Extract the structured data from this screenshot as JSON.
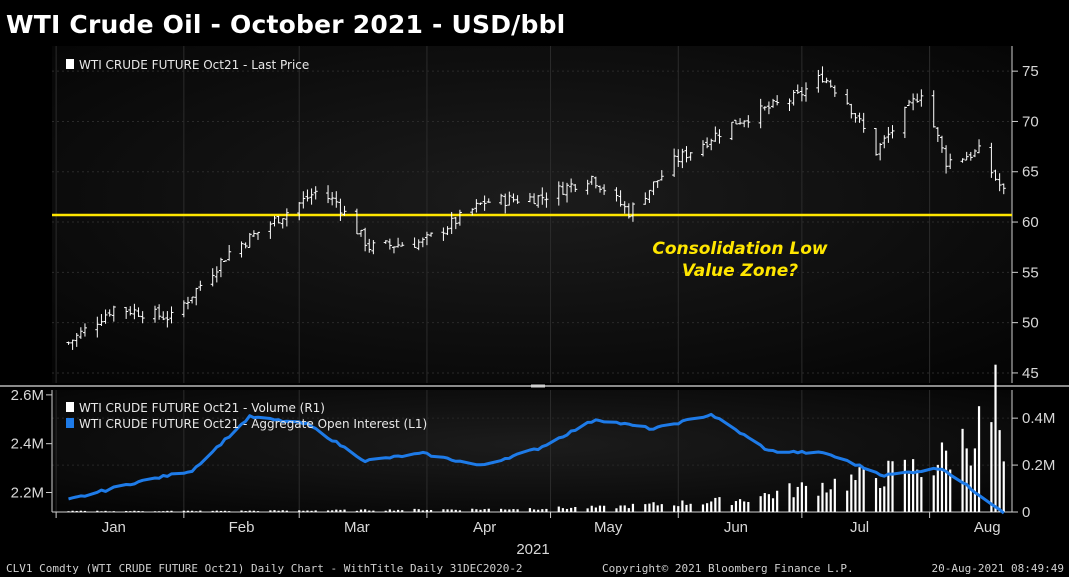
{
  "title": "WTI Crude Oil - October 2021 - USD/bbl",
  "footer": {
    "left": "CLV1 Comdty (WTI CRUDE FUTURE  Oct21) Daily Chart - WithTitle  Daily 31DEC2020-2",
    "center": "Copyright© 2021 Bloomberg Finance L.P.",
    "right": "20-Aug-2021 08:49:49"
  },
  "colors": {
    "background": "#000000",
    "price_bars": "#ffffff",
    "support_line": "#ffe600",
    "open_interest": "#1e7be8",
    "volume_bars": "#ffffff",
    "annotation": "#ffe600"
  },
  "chart_data": [
    {
      "type": "ohlc",
      "legend": [
        "WTI CRUDE FUTURE  Oct21 - Last Price"
      ],
      "year_label": "2021",
      "x_months": [
        "Jan",
        "Feb",
        "Mar",
        "Apr",
        "May",
        "Jun",
        "Jul",
        "Aug"
      ],
      "y_ticks": [
        45,
        50,
        55,
        60,
        65,
        70,
        75
      ],
      "y_axis_side": "right",
      "ylim": [
        44,
        77.5
      ],
      "horizontal_line": {
        "y": 60.7
      },
      "annotation": [
        "Consolidation Low",
        "Value Zone?"
      ],
      "series": [
        {
          "name": "WTI CRUDE FUTURE  Oct21 - Last Price",
          "x": [
            "2021-01-04",
            "2021-01-15",
            "2021-01-29",
            "2021-02-12",
            "2021-02-26",
            "2021-03-05",
            "2021-03-10",
            "2021-03-18",
            "2021-03-31",
            "2021-04-15",
            "2021-04-29",
            "2021-05-11",
            "2021-05-20",
            "2021-05-31",
            "2021-06-15",
            "2021-06-30",
            "2021-07-06",
            "2021-07-12",
            "2021-07-19",
            "2021-07-30",
            "2021-08-05",
            "2021-08-13",
            "2021-08-19"
          ],
          "close": [
            48,
            51.5,
            50.5,
            57,
            61,
            63,
            62,
            57.5,
            58,
            62,
            62.5,
            64.5,
            61,
            66,
            70,
            72.5,
            74.5,
            72,
            67,
            73,
            66,
            67,
            63
          ]
        }
      ]
    },
    {
      "type": "bar+line",
      "legend": [
        "WTI CRUDE FUTURE  Oct21 - Volume (R1)",
        "WTI CRUDE FUTURE  Oct21 - Aggregate Open Interest (L1)"
      ],
      "left_axis_ticks": [
        "2.2M",
        "2.4M",
        "2.6M"
      ],
      "right_axis_ticks": [
        "0",
        "0.2M",
        "0.4M"
      ],
      "ylim_left_millions": [
        2.12,
        2.62
      ],
      "ylim_right_millions": [
        0,
        0.52
      ],
      "series": [
        {
          "name": "WTI CRUDE FUTURE  Oct21 - Aggregate Open Interest (L1)",
          "axis": "left",
          "x": [
            "2021-01-04",
            "2021-01-20",
            "2021-02-03",
            "2021-02-17",
            "2021-03-03",
            "2021-03-17",
            "2021-03-31",
            "2021-04-14",
            "2021-04-28",
            "2021-05-12",
            "2021-05-26",
            "2021-06-09",
            "2021-06-23",
            "2021-07-07",
            "2021-07-21",
            "2021-08-04",
            "2021-08-19"
          ],
          "values_millions": [
            2.17,
            2.24,
            2.29,
            2.51,
            2.48,
            2.33,
            2.36,
            2.31,
            2.38,
            2.5,
            2.46,
            2.52,
            2.37,
            2.36,
            2.27,
            2.3,
            2.12
          ]
        },
        {
          "name": "WTI CRUDE FUTURE  Oct21 - Volume (R1)",
          "axis": "right",
          "x": [
            "2021-01-15",
            "2021-02-15",
            "2021-03-15",
            "2021-04-15",
            "2021-05-14",
            "2021-06-15",
            "2021-07-01",
            "2021-07-15",
            "2021-08-02",
            "2021-08-16",
            "2021-08-17",
            "2021-08-19"
          ],
          "values_millions": [
            0.004,
            0.005,
            0.008,
            0.012,
            0.02,
            0.05,
            0.1,
            0.14,
            0.2,
            0.39,
            0.5,
            0.16
          ]
        }
      ]
    }
  ]
}
